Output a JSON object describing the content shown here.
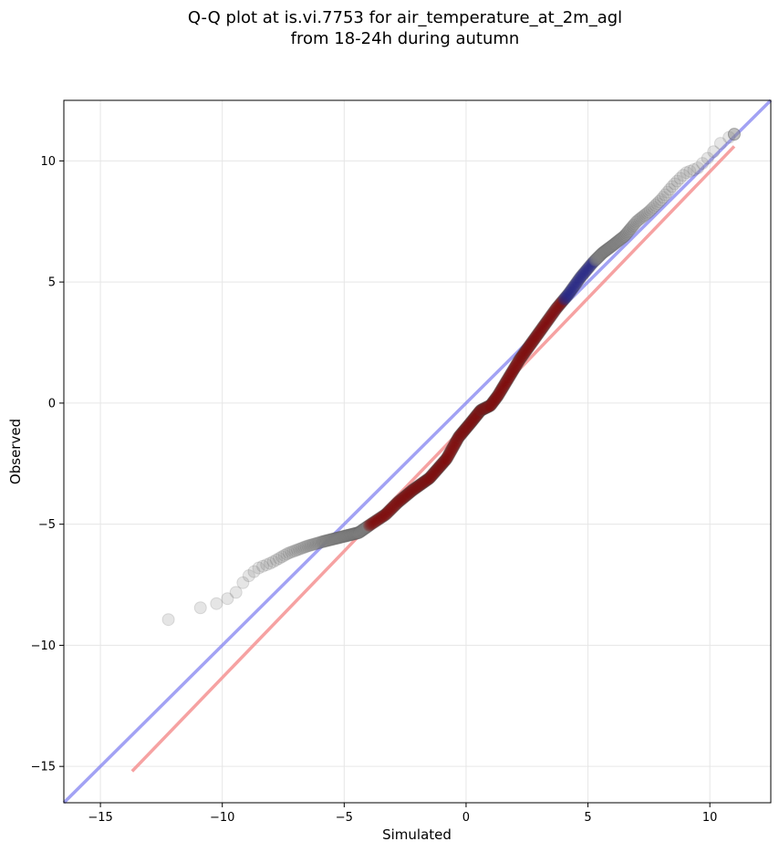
{
  "chart_data": {
    "type": "scatter",
    "title_line1": "Q-Q plot at is.vi.7753 for air_temperature_at_2m_agl",
    "title_line2": "from 18-24h during autumn",
    "xlabel": "Simulated",
    "ylabel": "Observed",
    "xlim": [
      -16.5,
      12.5
    ],
    "ylim": [
      -16.5,
      12.5
    ],
    "xticks": [
      -15,
      -10,
      -5,
      0,
      5,
      10
    ],
    "yticks": [
      -15,
      -10,
      -5,
      0,
      5,
      10
    ],
    "xtick_labels": [
      "−15",
      "−10",
      "−5",
      "0",
      "5",
      "10"
    ],
    "ytick_labels": [
      "−15",
      "−10",
      "−5",
      "0",
      "5",
      "10"
    ],
    "grid": true,
    "identity_line": {
      "x": [
        -16.5,
        12.5
      ],
      "y": [
        -16.5,
        12.5
      ],
      "color": "#7b7bf0"
    },
    "fit_line": {
      "x": [
        -13.7,
        11.0
      ],
      "y": [
        -15.2,
        10.6
      ],
      "color": "#f49292"
    },
    "quantile_anchors": {
      "x": [
        -13.7,
        -13.2,
        -12.8,
        -12.4,
        -11.8,
        -11.2,
        -10.6,
        -10.0,
        -9.5,
        -9.0,
        -8.5,
        -8.0,
        -7.3,
        -6.5,
        -5.8,
        -5.0,
        -4.4,
        -3.9,
        -3.3,
        -2.8,
        -2.2,
        -1.5,
        -0.8,
        -0.3,
        0.2,
        0.6,
        1.0,
        1.3,
        1.6,
        1.9,
        2.2,
        2.7,
        3.2,
        3.7,
        4.2,
        4.7,
        5.2,
        5.6,
        6.0,
        6.5,
        7.0,
        7.5,
        8.0,
        8.5,
        9.0,
        9.5,
        10.0,
        10.5,
        11.0
      ],
      "y": [
        -9.8,
        -9.7,
        -9.4,
        -9.0,
        -8.8,
        -8.5,
        -8.4,
        -8.2,
        -7.9,
        -7.2,
        -6.8,
        -6.6,
        -6.2,
        -5.9,
        -5.7,
        -5.5,
        -5.35,
        -5.0,
        -4.6,
        -4.1,
        -3.6,
        -3.1,
        -2.3,
        -1.4,
        -0.8,
        -0.3,
        -0.1,
        0.3,
        0.8,
        1.3,
        1.8,
        2.5,
        3.2,
        3.9,
        4.5,
        5.2,
        5.8,
        6.2,
        6.5,
        6.9,
        7.5,
        7.9,
        8.4,
        9.0,
        9.5,
        9.7,
        10.2,
        10.8,
        11.1
      ]
    },
    "point_count": 720,
    "marker_color": "#888888",
    "central_series": [
      {
        "name_color": "#8b0000",
        "x_range": [
          -4.0,
          4.0
        ]
      },
      {
        "name_color": "#1a1a8c",
        "x_range": [
          4.0,
          5.6
        ]
      }
    ]
  }
}
